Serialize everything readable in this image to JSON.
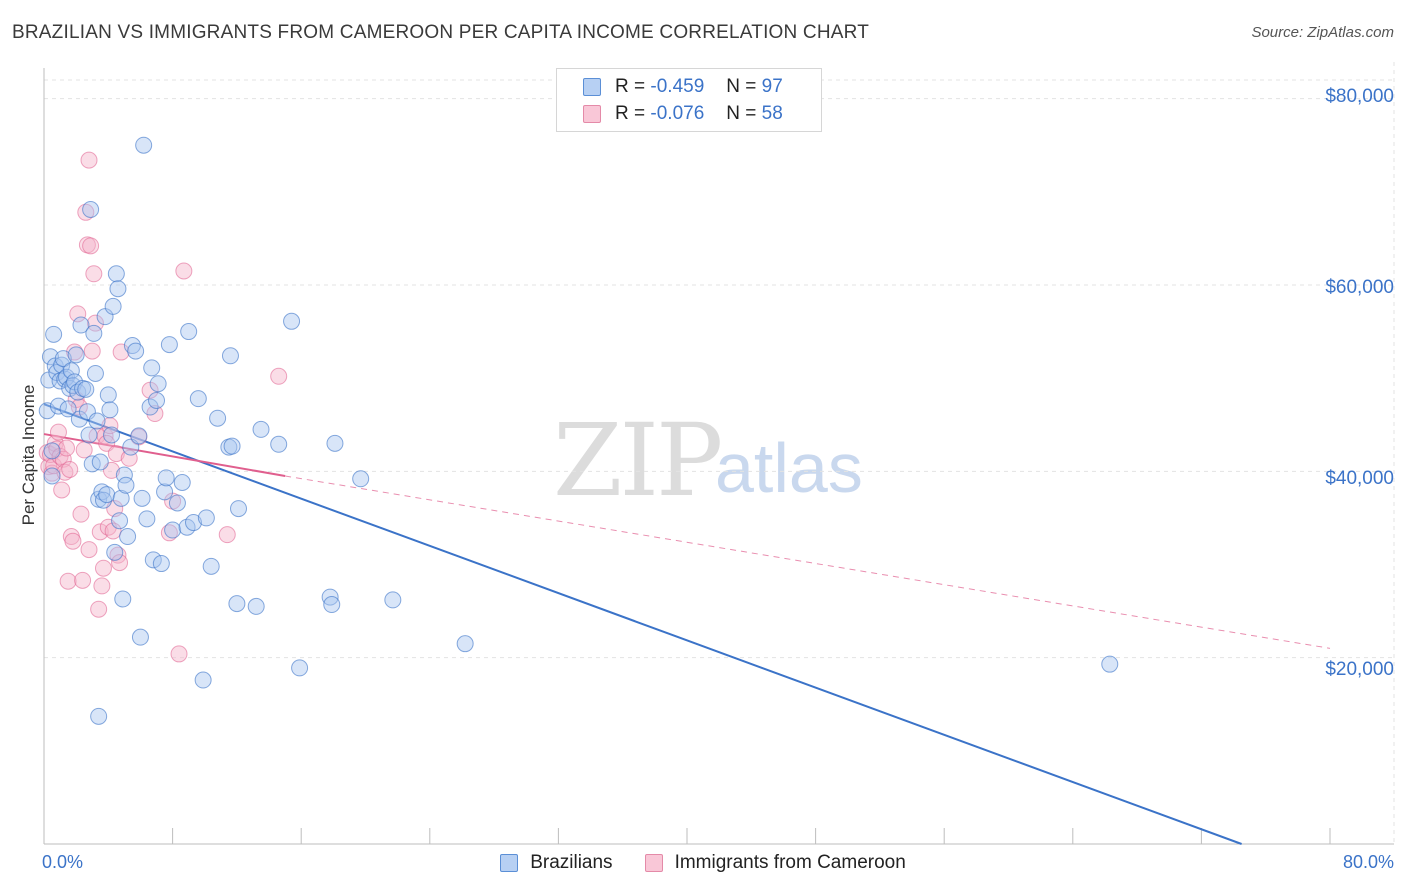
{
  "title": "BRAZILIAN VS IMMIGRANTS FROM CAMEROON PER CAPITA INCOME CORRELATION CHART",
  "source": "Source: ZipAtlas.com",
  "watermark": {
    "zip": "ZIP",
    "atlas": "atlas"
  },
  "colors": {
    "blue": "#3b73c8",
    "blue_fill": "#a9c6f0",
    "pink": "#e05f8e",
    "pink_fill": "#f5b3c9",
    "grid": "#e3e3e3"
  },
  "legend": {
    "row1": {
      "r_label": "R =",
      "r_value": "-0.459",
      "n_label": "N =",
      "n_value": "97"
    },
    "row2": {
      "r_label": "R =",
      "r_value": "-0.076",
      "n_label": "N =",
      "n_value": "58"
    }
  },
  "bottom_legend": {
    "series1": "Brazilians",
    "series2": "Immigrants from Cameroon"
  },
  "chart_data": {
    "type": "scatter",
    "title": "BRAZILIAN VS IMMIGRANTS FROM CAMEROON PER CAPITA INCOME CORRELATION CHART",
    "xlabel": "",
    "ylabel": "Per Capita Income",
    "xlim": [
      0,
      80
    ],
    "ylim": [
      0,
      82000
    ],
    "x_tick_labels": [
      "0.0%",
      "80.0%"
    ],
    "y_ticks": [
      20000,
      40000,
      60000,
      80000
    ],
    "y_tick_labels": [
      "$20,000",
      "$40,000",
      "$60,000",
      "$80,000"
    ],
    "series": [
      {
        "name": "Brazilians",
        "r": -0.459,
        "n": 97,
        "trend": {
          "x0": 0,
          "y0": 47200,
          "x1": 74.5,
          "y1": 0
        },
        "points": [
          [
            0.2,
            46500
          ],
          [
            0.3,
            49800
          ],
          [
            0.4,
            52300
          ],
          [
            0.5,
            39500
          ],
          [
            0.5,
            42200
          ],
          [
            0.6,
            54700
          ],
          [
            0.7,
            51300
          ],
          [
            0.8,
            50600
          ],
          [
            0.9,
            47000
          ],
          [
            1.0,
            49700
          ],
          [
            1.1,
            51400
          ],
          [
            1.2,
            52100
          ],
          [
            1.3,
            49900
          ],
          [
            1.4,
            50100
          ],
          [
            1.5,
            46700
          ],
          [
            1.6,
            48900
          ],
          [
            1.7,
            50800
          ],
          [
            1.8,
            49200
          ],
          [
            1.9,
            49600
          ],
          [
            2.0,
            52500
          ],
          [
            2.1,
            48500
          ],
          [
            2.2,
            45600
          ],
          [
            2.3,
            55700
          ],
          [
            2.4,
            48900
          ],
          [
            2.6,
            48800
          ],
          [
            2.7,
            46400
          ],
          [
            2.8,
            43900
          ],
          [
            2.9,
            68100
          ],
          [
            3.0,
            40800
          ],
          [
            3.1,
            54800
          ],
          [
            3.2,
            50500
          ],
          [
            3.3,
            45400
          ],
          [
            3.4,
            37000
          ],
          [
            3.5,
            41000
          ],
          [
            3.6,
            37800
          ],
          [
            3.7,
            36900
          ],
          [
            3.8,
            56600
          ],
          [
            3.9,
            37500
          ],
          [
            4.0,
            48200
          ],
          [
            4.1,
            46600
          ],
          [
            4.2,
            43900
          ],
          [
            4.3,
            57700
          ],
          [
            4.4,
            31300
          ],
          [
            4.5,
            61200
          ],
          [
            4.6,
            59600
          ],
          [
            4.7,
            34700
          ],
          [
            4.8,
            37100
          ],
          [
            4.9,
            26300
          ],
          [
            5.0,
            39600
          ],
          [
            5.1,
            38500
          ],
          [
            5.2,
            33000
          ],
          [
            5.4,
            42600
          ],
          [
            5.5,
            53500
          ],
          [
            5.7,
            52900
          ],
          [
            5.9,
            43800
          ],
          [
            6.0,
            22200
          ],
          [
            6.1,
            37100
          ],
          [
            6.2,
            75000
          ],
          [
            6.4,
            34900
          ],
          [
            6.6,
            46900
          ],
          [
            6.7,
            51100
          ],
          [
            6.8,
            30500
          ],
          [
            7.0,
            47600
          ],
          [
            7.1,
            49400
          ],
          [
            7.3,
            30100
          ],
          [
            7.5,
            37800
          ],
          [
            7.6,
            39300
          ],
          [
            7.8,
            53600
          ],
          [
            8.0,
            33700
          ],
          [
            8.3,
            36600
          ],
          [
            8.6,
            38800
          ],
          [
            8.9,
            34000
          ],
          [
            9.0,
            55000
          ],
          [
            9.3,
            34500
          ],
          [
            9.6,
            47800
          ],
          [
            9.9,
            17600
          ],
          [
            10.1,
            35000
          ],
          [
            10.4,
            29800
          ],
          [
            10.8,
            45700
          ],
          [
            11.5,
            42600
          ],
          [
            11.6,
            52400
          ],
          [
            11.7,
            42700
          ],
          [
            12.0,
            25800
          ],
          [
            12.1,
            36000
          ],
          [
            13.2,
            25500
          ],
          [
            13.5,
            44500
          ],
          [
            14.6,
            42900
          ],
          [
            15.4,
            56100
          ],
          [
            15.9,
            18900
          ],
          [
            17.8,
            26500
          ],
          [
            17.9,
            25700
          ],
          [
            18.1,
            43000
          ],
          [
            19.7,
            39200
          ],
          [
            21.7,
            26200
          ],
          [
            26.2,
            21500
          ],
          [
            66.3,
            19300
          ],
          [
            3.4,
            13700
          ]
        ]
      },
      {
        "name": "Immigrants from Cameroon",
        "r": -0.076,
        "n": 58,
        "trend_solid": {
          "x0": 0,
          "y0": 44000,
          "x1": 15.0,
          "y1": 39500
        },
        "trend_dashed": {
          "x0": 15.0,
          "y0": 39500,
          "x1": 80.0,
          "y1": 21000
        },
        "points": [
          [
            0.2,
            42000
          ],
          [
            0.3,
            40500
          ],
          [
            0.4,
            41800
          ],
          [
            0.5,
            39800
          ],
          [
            0.6,
            40600
          ],
          [
            0.7,
            43000
          ],
          [
            0.8,
            42400
          ],
          [
            0.9,
            44200
          ],
          [
            1.0,
            41600
          ],
          [
            1.1,
            38000
          ],
          [
            1.2,
            41300
          ],
          [
            1.3,
            39900
          ],
          [
            1.4,
            42500
          ],
          [
            1.5,
            28200
          ],
          [
            1.6,
            40200
          ],
          [
            1.7,
            33000
          ],
          [
            1.8,
            32500
          ],
          [
            1.9,
            52800
          ],
          [
            2.0,
            47700
          ],
          [
            2.1,
            56900
          ],
          [
            2.2,
            46900
          ],
          [
            2.3,
            35400
          ],
          [
            2.4,
            28300
          ],
          [
            2.5,
            42300
          ],
          [
            2.6,
            67800
          ],
          [
            2.7,
            64300
          ],
          [
            2.8,
            31600
          ],
          [
            2.9,
            64200
          ],
          [
            3.0,
            52900
          ],
          [
            3.1,
            61200
          ],
          [
            3.2,
            55900
          ],
          [
            3.3,
            43800
          ],
          [
            3.4,
            25200
          ],
          [
            3.5,
            33500
          ],
          [
            3.6,
            27700
          ],
          [
            3.7,
            29600
          ],
          [
            3.8,
            43800
          ],
          [
            3.9,
            43000
          ],
          [
            4.0,
            34000
          ],
          [
            4.1,
            44900
          ],
          [
            4.2,
            40100
          ],
          [
            4.3,
            33600
          ],
          [
            4.4,
            36000
          ],
          [
            4.5,
            41900
          ],
          [
            4.6,
            31000
          ],
          [
            4.7,
            30200
          ],
          [
            4.8,
            52800
          ],
          [
            5.3,
            41400
          ],
          [
            5.9,
            43700
          ],
          [
            6.6,
            48700
          ],
          [
            6.9,
            46200
          ],
          [
            7.8,
            33400
          ],
          [
            8.0,
            36800
          ],
          [
            8.4,
            20400
          ],
          [
            8.7,
            61500
          ],
          [
            11.4,
            33200
          ],
          [
            14.6,
            50200
          ],
          [
            2.8,
            73400
          ]
        ]
      }
    ]
  }
}
